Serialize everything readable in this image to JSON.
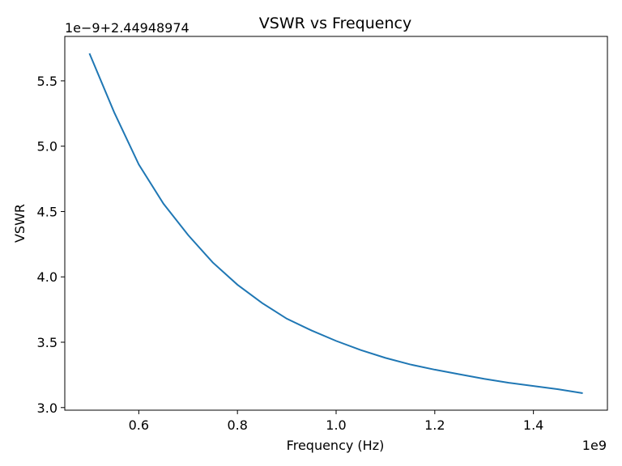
{
  "chart_data": {
    "type": "line",
    "title": "VSWR vs Frequency",
    "xlabel": "Frequency (Hz)",
    "ylabel": "VSWR",
    "x_offset_text": "1e9",
    "y_offset_text": "1e−9+2.44948974",
    "xlim": [
      0.45,
      1.55
    ],
    "ylim": [
      2.98,
      5.84
    ],
    "x_ticks": [
      {
        "value": 0.6,
        "label": "0.6"
      },
      {
        "value": 0.8,
        "label": "0.8"
      },
      {
        "value": 1.0,
        "label": "1.0"
      },
      {
        "value": 1.2,
        "label": "1.2"
      },
      {
        "value": 1.4,
        "label": "1.4"
      }
    ],
    "y_ticks": [
      {
        "value": 3.0,
        "label": "3.0"
      },
      {
        "value": 3.5,
        "label": "3.5"
      },
      {
        "value": 4.0,
        "label": "4.0"
      },
      {
        "value": 4.5,
        "label": "4.5"
      },
      {
        "value": 5.0,
        "label": "5.0"
      },
      {
        "value": 5.5,
        "label": "5.5"
      }
    ],
    "grid": false,
    "series": [
      {
        "name": "VSWR",
        "color": "#1f77b4",
        "x": [
          0.5,
          0.55,
          0.6,
          0.65,
          0.7,
          0.75,
          0.8,
          0.85,
          0.9,
          0.95,
          1.0,
          1.05,
          1.1,
          1.15,
          1.2,
          1.25,
          1.3,
          1.35,
          1.4,
          1.45,
          1.5
        ],
        "y": [
          5.71,
          5.26,
          4.86,
          4.56,
          4.32,
          4.11,
          3.94,
          3.8,
          3.68,
          3.59,
          3.51,
          3.44,
          3.38,
          3.33,
          3.29,
          3.255,
          3.22,
          3.19,
          3.165,
          3.14,
          3.11
        ]
      }
    ]
  }
}
